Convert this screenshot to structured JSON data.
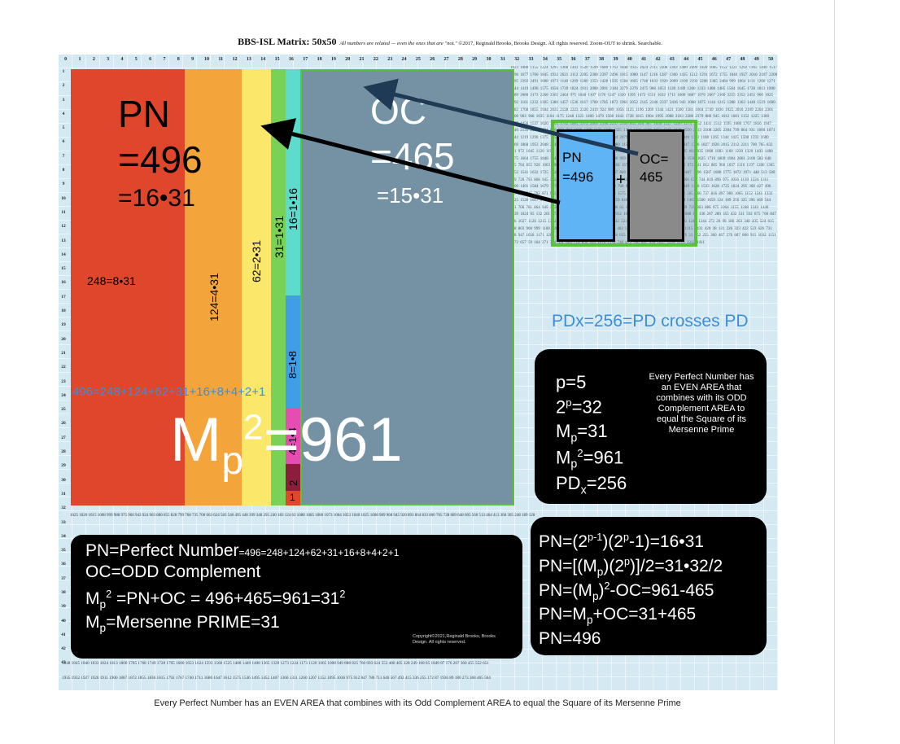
{
  "title": {
    "main": "BBS-ISL Matrix: 50x50",
    "note": "All numbers are related — even the ones that are \"not.\"",
    "copyright": "©2017, Reginald Brooks, Brooks Design. All rights reserved. Zoom-OUT to shrink. Searchable."
  },
  "matrix": {
    "col_numbers": [
      "0",
      "1",
      "2",
      "3",
      "4",
      "5",
      "6",
      "7",
      "8",
      "9",
      "10",
      "11",
      "12",
      "13",
      "14",
      "15",
      "16",
      "17",
      "18",
      "19",
      "20",
      "21",
      "22",
      "23",
      "24",
      "25",
      "26",
      "27",
      "28",
      "29",
      "30",
      "31",
      "32",
      "33",
      "34",
      "35",
      "36",
      "37",
      "38",
      "39",
      "40",
      "41",
      "42",
      "43",
      "44",
      "45",
      "46",
      "47",
      "48",
      "49",
      "50"
    ],
    "row_numbers": [
      "1",
      "2",
      "3",
      "4",
      "5",
      "6",
      "7",
      "8",
      "9",
      "10",
      "11",
      "12",
      "13",
      "14",
      "15",
      "16",
      "17",
      "18",
      "19",
      "20",
      "21",
      "22",
      "23",
      "24",
      "25",
      "26",
      "27",
      "28",
      "29",
      "30",
      "31",
      "32",
      "33",
      "34",
      "35",
      "36",
      "37",
      "38",
      "39",
      "40",
      "41",
      "42",
      "43"
    ],
    "texture_text": "1023 1088 1155 1224 1295 1368 1443 1520 1599 1680 1763 1848 1935 2024 2115 2208 2303 2400 2499 1020 1085 1152 1221 1292 1365 1440 1517 1596 1677 1760 1845 1932 2021 2112 2205 2300 2397 2496 1015 1080 1147 1216 1287 1360 1435 1512 1591 1672 1755 1840 1927 2016 2107 2200 2295 2392 2491 1008 1073 1140 1209 1280 1353 1428 1505 1584 1665 1748 1833 1920 2009 2100 2193 2288 2385 2484 999 1064 1131 1200 1271 1344 1419 1496 1575 1656 1739 1824 1911 2000 2091 2184 2279 2376 2475 988 1053 1120 1189 1260 1333 1408 1485 1564 1645 1728 1813 1900 1989 2080 2173 2268 2365 2464 975 1040 1107 1176 1247 1320 1395 1472 1551 1632 1715 1800 1887 1976 2067 2160 2255 2352 2451 960 1025 1092 1161 1232 1305 1380 1457 1536 1617 1700 1785 1872 1961 2052 2145 2240 2337 2436 943 1008 1075 1144 1215 1288 1363 1440 1519 1600 1683 1768 1855 1944 2035 2128 2223 2320 2419 924 989 1056 1125 1196 1269 1344 1421 1500 1581 1664 1749 1836 1925 2016 2109 2204 2301 2400 903 968 1035 1104 1175 1248 1323 1400 1479 1560 1643 1728 1815 1904 1995 2088 2183 2280 2379 880 945 1012 1081 1152 1225 1300 1377 1456 1537 1620 1705 1792 1881 1972 2065 2160 2257 2356 855 920 987 1056 1127 1200 1275 1352 1431 1512 1595 1680 1767 1856 1947 2040 2135 2232 2331 828 893 960 1029 1100 1173 1248 1325 1404 1485 1568 1653 1740 1829 1920 2013 2108 2205 2304 799 864 931 1000 1071 1144 1219 1296 1375 1456 1539 1624 1711 1800 1891 1984 2079 2176 2275 768 833 900 969 1040 1113 1188 1265 1344 1425 1508 1593 1680 1769 1860 1953 2048 2145 2244 735 800 867 936 1007 1080 1155 1232 1311 1392 1475 1560 1647 1736 1827 1920 2015 2112 2211 700 765 832 901 972 1045 1120 1197 1276 1357 1440 1525 1612 1701 1792 1885 1980 2077 2176 663 728 795 864 935 1008 1083 1160 1239 1320 1403 1488 1575 1664 1755 1848 1943 2040 2139 624 689 756 825 896 969 1044 1121 1200 1281 1364 1449 1536 1625 1716 1809 1904 2001 2100 583 648 715 784 855 928 1003 1080 1159 1240 1323 1408 1495 1584 1675 1768 1863 1960 2059 540 605 672 741 812 885 960 1037 1116 1197 1280 1365 1452 1541 1632 1725 1820 1917 2016 495 560 627 696 767 840 915 992 1071 1152 1235 1320 1407 1496 1587 1680 1775 1872 1971 448 513 580 649 720 793 868 945 1024 1105 1188 1273 1360 1449 1540 1633 1728 1825 1924 399 464 531 600 671 744 819 896 975 1056 1139 1224 1311 1400 1491 1584 1679 1776 1875 348 413 480 549 620 693 768 845 924 1005 1088 1173 1260 1349 1440 1533 1628 1725 1824 295 360 427 496 567 640 715 792 871 952 1035 1120 1207 1296 1387 1480 1575 1672 1771 240 305 372 441 512 585 660 737 816 897 980 1065 1152 1241 1332 1425 1520 1617 1716 183 248 315 384 455 528 603 680 759 840 923 1008 1095 1184 1275 1368 1463 1560 1659 124 189 256 325 396 469 544 621 700 781 864 949 1036 1125 1216 1309 1404 1501 1600 63 128 195 264 335 408 483 560 639 720 803 888 975 1064 1155 1248 1343 1440 1539 1024 65 132 201 272 345 420 497 576 657 740 825 912 1001 1092 1185 1280 1377 1476 1088 67 136 207 280 355 432 511 592 675 760 847 936 1027 1120 1215 1312 1411 132 67 138 211 286 363 442 523 606 691 778 867 958 1051 1146 1243 1344 272 20 99 180 263 348 435 524 615 708 803 900 999 1100 1203 1304 345 28 115 204 295 388 483 580 679 780 883 988 1095 1204 1315 1431 420 38 131 226 323 422 523 626 731 838 947 1058 1171 1286 1403 497 43 140 239 340 443 548 655 764 875 988 1103 1220 1339 576 51 152 255 360 467 576 687 800 915 1032 1151 1272 657 59 164 271 380 491 604 719 836 955 1076 1199 740 675 760 847 936 1027 1120 1215 1312 1411",
    "bottom_rows_text": "1025 1020 1015 1008 999 988 975 960 943 924 903 880 855 828 799 768 735 700 663 624 583 540 495 448 399 348 295 240 183 124 63 1088 1085 1080 1073 1064 1053 1040 1025 1008 989 968 945 920 893 864 833 800 765 728 689 648 605 560 513 464 413 360 305 248 189 128",
    "row43_text": "1848 1845 1840 1833 1824 1813 1800 1785 1768 1749 1728 1705 1680 1653 1624 1593 1560 1525 1488 1449 1408 1365 1320 1273 1224 1173 1120 1065 1008 949 888 825 760 693 624 553 480 405 328 249 168 85 1849 87 176 267 360 455 552 651",
    "row44_text": "1935 1932 1927 1920 1911 1900 1887 1872 1855 1836 1815 1792 1767 1740 1711 1680 1647 1612 1575 1536 1495 1452 1407 1360 1311 1260 1207 1152 1095 1036 975 912 847 780 711 640 567 492 415 336 255 172 87 1936 89 180 273 368 465 564"
  },
  "bands": {
    "pn_label": "PN",
    "pn_value": "=496",
    "pn_factor": "=16•31",
    "oc_label": "OC",
    "oc_value": "=465",
    "oc_factor": "=15•31",
    "band_248": "248=8•31",
    "band_124": "124=4•31",
    "band_62": "62=2•31",
    "band_31": "31=1•31",
    "band_16": "16=1•16",
    "band_8": "8=1•8",
    "band_4": "4=1•4",
    "band_2": "2",
    "band_1": "1",
    "sum_line": "496=248+124+62+31+16+8+4+2+1",
    "mp2_m": "M",
    "mp2_p": "p",
    "mp2_2": "2",
    "mp2_rest": "=961"
  },
  "mini_diagram": {
    "pn_label": "PN",
    "pn_value": "=496",
    "plus": "+",
    "oc_label": "OC=",
    "oc_value": "465"
  },
  "pdx_note": "PDx=256=PD crosses PD",
  "panel_right_top": {
    "p": "p=5",
    "two_p_base": "2",
    "two_p_exp": "p",
    "two_p_val": "=32",
    "mp_base": "M",
    "mp_sub": "p",
    "mp_val": "=31",
    "mp2_base": "M",
    "mp2_sub": "p",
    "mp2_exp": "2",
    "mp2_val": "=961",
    "pdx_base": "PD",
    "pdx_sub": "x",
    "pdx_val": "=256",
    "desc": "Every Perfect Number has an EVEN AREA that combines with its ODD Complement AREA to equal the Square of its Mersenne Prime"
  },
  "panel_right_bottom": {
    "line1_a": "PN=(2",
    "line1_e1": "p-1",
    "line1_b": ")(2",
    "line1_e2": "p",
    "line1_c": "-1)=16•31",
    "line2_a": "PN=[(M",
    "line2_s": "p",
    "line2_b": ")(2",
    "line2_e": "p",
    "line2_c": ")]/2=31•32/2",
    "line3_a": "PN=(M",
    "line3_s": "p",
    "line3_b": ")",
    "line3_e": "2",
    "line3_c": "-OC=961-465",
    "line4_a": "PN=M",
    "line4_s": "p",
    "line4_c": "+OC=31+465",
    "line5": "PN=496"
  },
  "panel_left_bottom": {
    "line1_a": "PN=Perfect Number",
    "line1_b": "=496=248+124+62+31+16+8+4+2+1",
    "line2": "OC=ODD Complement",
    "line3_a": "M",
    "line3_s": "p",
    "line3_e": "2",
    "line3_b": " =PN+OC = 496+465=961=31",
    "line3_e2": "2",
    "line4_a": "M",
    "line4_s": "p",
    "line4_b": "=Mersenne PRIME=31",
    "copyright": "Copyright©2021,Reginald Brooks, Brooks Design. All rights reserved."
  },
  "caption": "Every Perfect Number has an EVEN AREA that combines with its Odd Complement AREA to equal the Square of its Mersenne Prime",
  "colors": {
    "band_248": "#e0462c",
    "band_124": "#f3a43a",
    "band_62": "#fbe86a",
    "band_31": "#79d157",
    "band_16": "#5ddbcc",
    "band_8": "#3f9ee6",
    "band_4": "#e64db3",
    "band_2": "#8c1d3c",
    "band_1": "#e0462c",
    "oc_area": "#7592a5",
    "outline_green": "#58c23a",
    "panel_bg": "#000000",
    "mini_pn": "#5fb4f5",
    "mini_oc": "#8a8a8a"
  }
}
